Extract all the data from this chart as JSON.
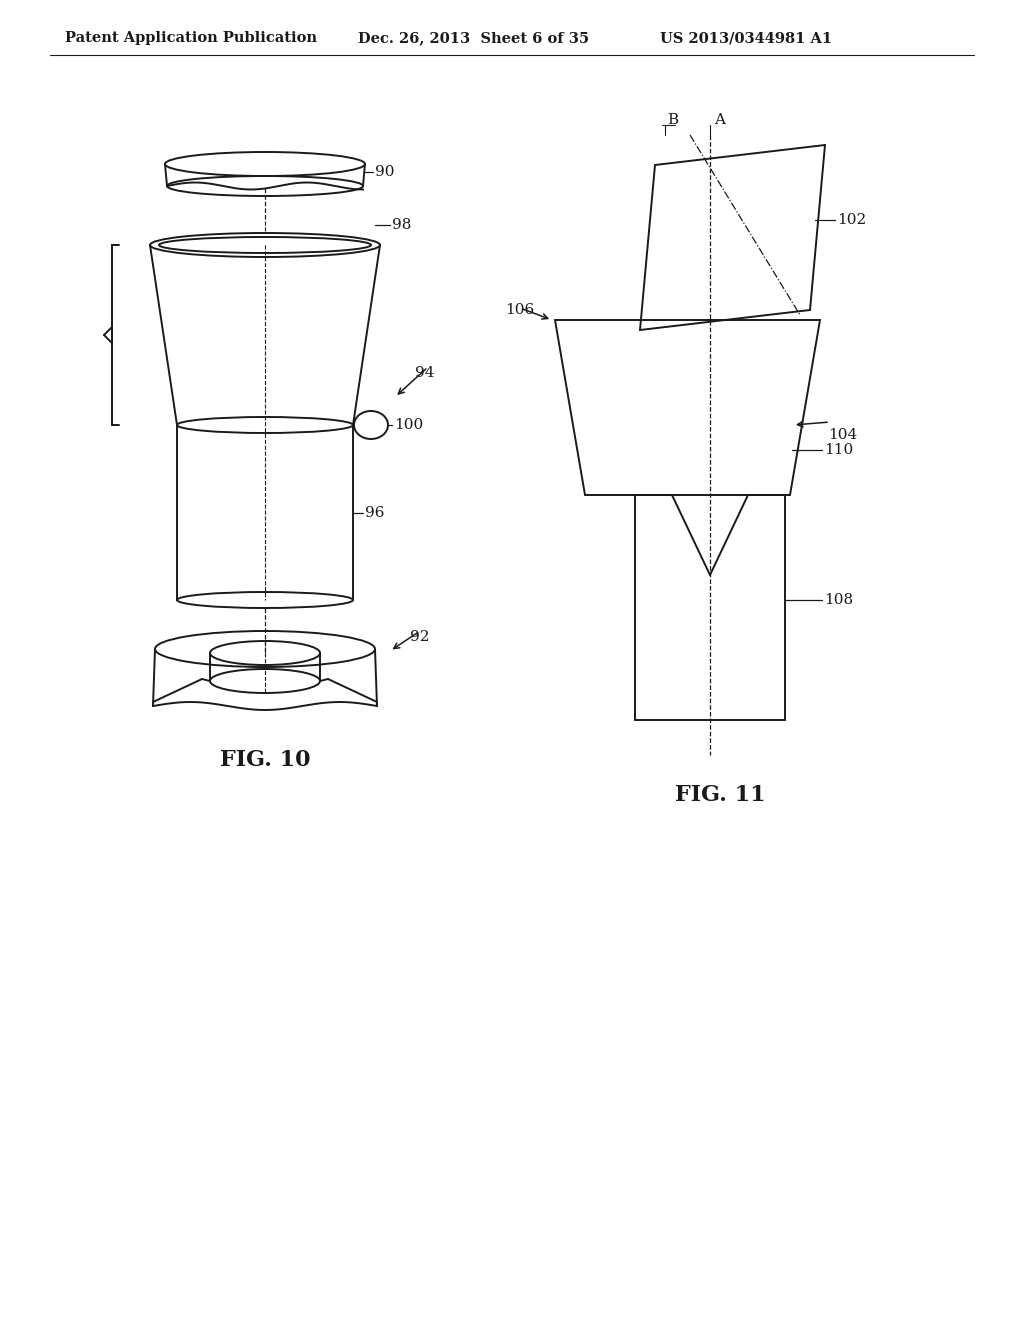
{
  "bg_color": "#ffffff",
  "line_color": "#1a1a1a",
  "header_text": "Patent Application Publication",
  "header_date": "Dec. 26, 2013  Sheet 6 of 35",
  "header_patent": "US 2013/0344981 A1",
  "fig10_label": "FIG. 10",
  "fig11_label": "FIG. 11",
  "label_90": "90",
  "label_92": "92",
  "label_94": "94",
  "label_96": "96",
  "label_98": "98",
  "label_100": "100",
  "label_102": "102",
  "label_104": "104",
  "label_106": "106",
  "label_108": "108",
  "label_110": "110",
  "label_A": "A",
  "label_B": "B"
}
